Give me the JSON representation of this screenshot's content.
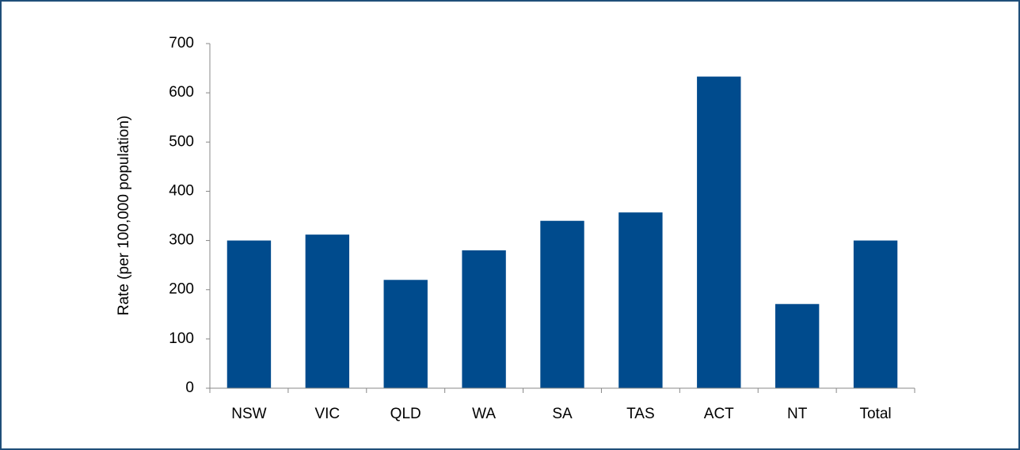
{
  "chart_data": {
    "type": "bar",
    "y_label": "Rate (per 100,000 population)",
    "categories": [
      "NSW",
      "VIC",
      "QLD",
      "WA",
      "SA",
      "TAS",
      "ACT",
      "NT",
      "Total"
    ],
    "values": [
      300,
      312,
      220,
      280,
      340,
      357,
      633,
      171,
      300
    ],
    "color": "#004b8d",
    "ylim": [
      0,
      700
    ],
    "yticks": [
      0,
      100,
      200,
      300,
      400,
      500,
      600,
      700
    ],
    "grid": false
  }
}
